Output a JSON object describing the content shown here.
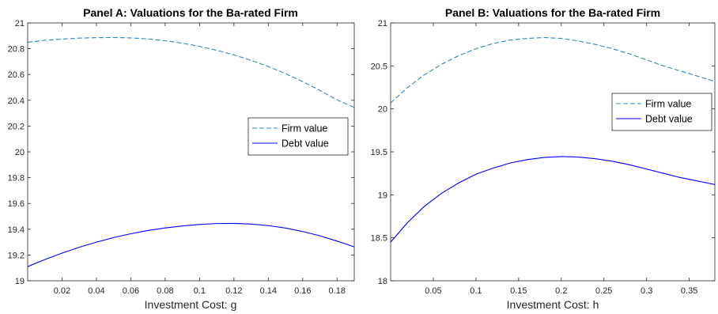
{
  "chart_data": [
    {
      "type": "line",
      "title": "Panel A: Valuations for the Ba-rated Firm",
      "xlabel": "Investment Cost: g",
      "ylabel": "",
      "xlim": [
        0,
        0.19
      ],
      "ylim": [
        19,
        21
      ],
      "xticks": [
        0.02,
        0.04,
        0.06,
        0.08,
        0.1,
        0.12,
        0.14,
        0.16,
        0.18
      ],
      "xtick_labels": [
        "0.02",
        "0.04",
        "0.06",
        "0.08",
        "0.1",
        "0.12",
        "0.14",
        "0.16",
        "0.18"
      ],
      "yticks": [
        19,
        19.2,
        19.4,
        19.6,
        19.8,
        20,
        20.2,
        20.4,
        20.6,
        20.8,
        21
      ],
      "ytick_labels": [
        "19",
        "19.2",
        "19.4",
        "19.6",
        "19.8",
        "20",
        "20.2",
        "20.4",
        "20.6",
        "20.8",
        "21"
      ],
      "grid": false,
      "legend_position": "right",
      "series": [
        {
          "name": "Firm value",
          "style": "dashed",
          "color": "#2e86c1",
          "x": [
            0,
            0.01,
            0.02,
            0.03,
            0.04,
            0.05,
            0.06,
            0.07,
            0.08,
            0.09,
            0.1,
            0.11,
            0.12,
            0.13,
            0.14,
            0.15,
            0.16,
            0.17,
            0.18,
            0.19
          ],
          "y": [
            20.85,
            20.865,
            20.875,
            20.882,
            20.886,
            20.887,
            20.884,
            20.876,
            20.862,
            20.843,
            20.818,
            20.788,
            20.752,
            20.71,
            20.662,
            20.607,
            20.545,
            20.477,
            20.403,
            20.345
          ]
        },
        {
          "name": "Debt value",
          "style": "solid",
          "color": "#0000ff",
          "x": [
            0,
            0.01,
            0.02,
            0.03,
            0.04,
            0.05,
            0.06,
            0.07,
            0.08,
            0.09,
            0.1,
            0.11,
            0.12,
            0.13,
            0.14,
            0.15,
            0.16,
            0.17,
            0.18,
            0.19
          ],
          "y": [
            19.11,
            19.165,
            19.215,
            19.26,
            19.3,
            19.335,
            19.365,
            19.39,
            19.41,
            19.425,
            19.437,
            19.444,
            19.445,
            19.44,
            19.428,
            19.409,
            19.382,
            19.349,
            19.308,
            19.263
          ]
        }
      ]
    },
    {
      "type": "line",
      "title": "Panel B: Valuations for the Ba-rated Firm",
      "xlabel": "Investment Cost: h",
      "ylabel": "",
      "xlim": [
        0,
        0.38
      ],
      "ylim": [
        18,
        21
      ],
      "xticks": [
        0.05,
        0.1,
        0.15,
        0.2,
        0.25,
        0.3,
        0.35
      ],
      "xtick_labels": [
        "0.05",
        "0.1",
        "0.15",
        "0.2",
        "0.25",
        "0.3",
        "0.35"
      ],
      "yticks": [
        18,
        18.5,
        19,
        19.5,
        20,
        20.5,
        21
      ],
      "ytick_labels": [
        "18",
        "18.5",
        "19",
        "19.5",
        "20",
        "20.5",
        "21"
      ],
      "grid": false,
      "legend_position": "right",
      "series": [
        {
          "name": "Firm value",
          "style": "dashed",
          "color": "#2e86c1",
          "x": [
            0,
            0.02,
            0.04,
            0.06,
            0.08,
            0.1,
            0.12,
            0.14,
            0.16,
            0.18,
            0.2,
            0.22,
            0.24,
            0.26,
            0.28,
            0.3,
            0.32,
            0.34,
            0.36,
            0.38
          ],
          "y": [
            20.07,
            20.25,
            20.4,
            20.52,
            20.62,
            20.7,
            20.76,
            20.8,
            20.82,
            20.83,
            20.82,
            20.79,
            20.75,
            20.7,
            20.64,
            20.57,
            20.5,
            20.44,
            20.38,
            20.32
          ]
        },
        {
          "name": "Debt value",
          "style": "solid",
          "color": "#0000ff",
          "x": [
            0,
            0.02,
            0.04,
            0.06,
            0.08,
            0.1,
            0.12,
            0.14,
            0.16,
            0.18,
            0.2,
            0.22,
            0.24,
            0.26,
            0.28,
            0.3,
            0.32,
            0.34,
            0.36,
            0.38
          ],
          "y": [
            18.45,
            18.68,
            18.87,
            19.02,
            19.14,
            19.24,
            19.31,
            19.37,
            19.41,
            19.435,
            19.445,
            19.44,
            19.42,
            19.39,
            19.35,
            19.3,
            19.25,
            19.2,
            19.16,
            19.12
          ]
        }
      ]
    }
  ]
}
